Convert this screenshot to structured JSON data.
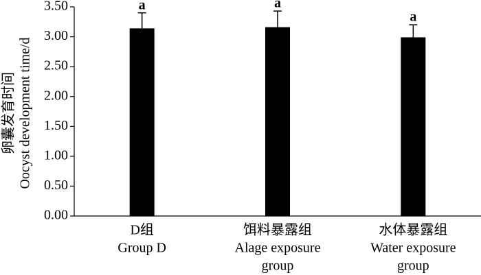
{
  "chart_data": {
    "type": "bar",
    "y_label": [
      "卵囊发育时间",
      "Oocyst development time/d"
    ],
    "categories": [
      [
        "D组",
        "Group D"
      ],
      [
        "饵料暴露组",
        "Alage exposure",
        "group"
      ],
      [
        "水体暴露组",
        "Water exposure",
        "group"
      ]
    ],
    "values": [
      3.14,
      3.16,
      2.99
    ],
    "errors": [
      0.26,
      0.27,
      0.21
    ],
    "annotations": [
      "a",
      "a",
      "a"
    ],
    "color": "#000000",
    "ylim": [
      0,
      3.5
    ],
    "yticks": [
      {
        "value": 0,
        "label": "0.00"
      },
      {
        "value": 0.5,
        "label": "0.50"
      },
      {
        "value": 1,
        "label": "1.00"
      },
      {
        "value": 1.5,
        "label": "1.50"
      },
      {
        "value": 2,
        "label": "2.00"
      },
      {
        "value": 2.5,
        "label": "2.50"
      },
      {
        "value": 3,
        "label": "3.00"
      },
      {
        "value": 3.5,
        "label": "3.50"
      }
    ]
  }
}
